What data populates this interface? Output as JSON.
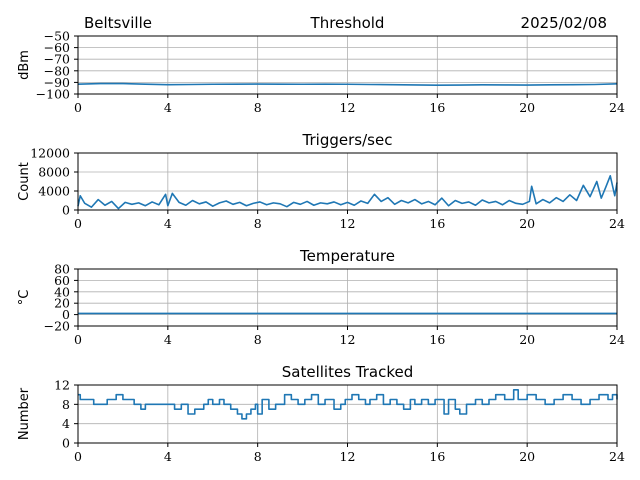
{
  "header": {
    "location": "Beltsville",
    "date": "2025/02/08"
  },
  "chart_data": [
    {
      "type": "line",
      "title": "Threshold",
      "xlabel": "",
      "ylabel": "dBm",
      "xlim": [
        0,
        24
      ],
      "ylim": [
        -100,
        -50
      ],
      "x_ticks": [
        0,
        4,
        8,
        12,
        16,
        20,
        24
      ],
      "y_ticks": [
        -100,
        -90,
        -80,
        -70,
        -60,
        -50
      ],
      "grid": true,
      "series": [
        {
          "x": [
            0,
            1,
            2,
            3,
            4,
            5,
            6,
            7,
            8,
            9,
            10,
            11,
            12,
            13,
            14,
            15,
            16,
            17,
            18,
            19,
            20,
            21,
            22,
            23,
            24
          ],
          "values": [
            -91.5,
            -91,
            -91,
            -91.5,
            -92,
            -91.8,
            -91.6,
            -91.5,
            -91.4,
            -91.5,
            -91.6,
            -91.5,
            -91.6,
            -91.8,
            -92,
            -92.2,
            -92.4,
            -92.3,
            -92.1,
            -92.2,
            -92.3,
            -92.1,
            -92,
            -91.8,
            -91.2
          ]
        }
      ]
    },
    {
      "type": "line",
      "title": "Triggers/sec",
      "xlabel": "",
      "ylabel": "Count",
      "xlim": [
        0,
        24
      ],
      "ylim": [
        0,
        12000
      ],
      "x_ticks": [
        0,
        4,
        8,
        12,
        16,
        20,
        24
      ],
      "y_ticks": [
        0,
        4000,
        8000,
        12000
      ],
      "grid": true,
      "series": [
        {
          "x": [
            0,
            0.1,
            0.3,
            0.6,
            0.9,
            1.2,
            1.5,
            1.8,
            2.1,
            2.4,
            2.7,
            3.0,
            3.3,
            3.6,
            3.9,
            4.0,
            4.2,
            4.5,
            4.8,
            5.1,
            5.4,
            5.7,
            6.0,
            6.3,
            6.6,
            6.9,
            7.2,
            7.5,
            7.8,
            8.1,
            8.4,
            8.7,
            9.0,
            9.3,
            9.6,
            9.9,
            10.2,
            10.5,
            10.8,
            11.1,
            11.4,
            11.7,
            12.0,
            12.3,
            12.6,
            12.9,
            13.2,
            13.5,
            13.8,
            14.1,
            14.4,
            14.7,
            15.0,
            15.3,
            15.6,
            15.9,
            16.2,
            16.5,
            16.8,
            17.1,
            17.4,
            17.7,
            18.0,
            18.3,
            18.6,
            18.9,
            19.2,
            19.5,
            19.8,
            20.1,
            20.2,
            20.4,
            20.7,
            21.0,
            21.3,
            21.6,
            21.9,
            22.2,
            22.5,
            22.8,
            23.1,
            23.3,
            23.5,
            23.7,
            23.9,
            24.0
          ],
          "values": [
            800,
            3000,
            1400,
            600,
            2200,
            1000,
            1800,
            300,
            1600,
            1200,
            1500,
            900,
            1700,
            1100,
            3300,
            900,
            3500,
            1600,
            1000,
            2000,
            1300,
            1700,
            800,
            1500,
            1900,
            1200,
            1600,
            900,
            1400,
            1700,
            1100,
            1500,
            1300,
            700,
            1600,
            1200,
            1800,
            1000,
            1500,
            1300,
            1700,
            1100,
            1600,
            1000,
            1900,
            1400,
            3300,
            1800,
            2600,
            1200,
            2000,
            1500,
            2200,
            1300,
            1800,
            1100,
            2500,
            900,
            2000,
            1400,
            1700,
            1000,
            2100,
            1500,
            1800,
            1100,
            2000,
            1400,
            1200,
            1800,
            5000,
            1300,
            2200,
            1500,
            2600,
            1800,
            3200,
            2000,
            5200,
            2800,
            6000,
            2500,
            4800,
            7200,
            3000,
            5800
          ]
        }
      ]
    },
    {
      "type": "line",
      "title": "Temperature",
      "xlabel": "",
      "ylabel": "°C",
      "xlim": [
        0,
        24
      ],
      "ylim": [
        -20,
        80
      ],
      "x_ticks": [
        0,
        4,
        8,
        12,
        16,
        20,
        24
      ],
      "y_ticks": [
        -20,
        0,
        20,
        40,
        60,
        80
      ],
      "grid": true,
      "series": [
        {
          "x": [
            0,
            24
          ],
          "values": [
            2,
            2
          ]
        }
      ]
    },
    {
      "type": "line",
      "title": "Satellites Tracked",
      "xlabel": "",
      "ylabel": "Number",
      "xlim": [
        0,
        24
      ],
      "ylim": [
        0,
        12
      ],
      "x_ticks": [
        0,
        4,
        8,
        12,
        16,
        20,
        24
      ],
      "y_ticks": [
        0,
        4,
        8,
        12
      ],
      "grid": true,
      "step": true,
      "series": [
        {
          "x": [
            0,
            0.1,
            0.7,
            1.3,
            1.7,
            2.0,
            2.5,
            2.8,
            3.0,
            4.3,
            4.6,
            4.9,
            5.2,
            5.6,
            5.8,
            6.0,
            6.3,
            6.5,
            6.8,
            7.1,
            7.3,
            7.5,
            7.7,
            7.9,
            8.0,
            8.2,
            8.5,
            8.8,
            9.2,
            9.5,
            9.8,
            10.1,
            10.4,
            10.7,
            11.0,
            11.4,
            11.7,
            11.9,
            12.2,
            12.5,
            12.8,
            13.0,
            13.3,
            13.6,
            13.9,
            14.2,
            14.5,
            14.8,
            15.0,
            15.3,
            15.6,
            15.9,
            16.3,
            16.5,
            16.8,
            17.0,
            17.3,
            17.7,
            18.0,
            18.3,
            18.6,
            19.0,
            19.4,
            19.6,
            20.0,
            20.4,
            20.8,
            21.2,
            21.6,
            22.0,
            22.4,
            22.8,
            23.2,
            23.6,
            23.8,
            24.0
          ],
          "values": [
            10,
            9,
            8,
            9,
            10,
            9,
            8,
            7,
            8,
            7,
            8,
            6,
            7,
            8,
            9,
            8,
            9,
            8,
            7,
            6,
            5,
            6,
            7,
            8,
            6,
            9,
            7,
            8,
            10,
            9,
            8,
            9,
            10,
            8,
            9,
            7,
            8,
            9,
            10,
            9,
            8,
            9,
            10,
            8,
            9,
            8,
            7,
            9,
            8,
            9,
            8,
            9,
            6,
            9,
            7,
            6,
            8,
            9,
            8,
            9,
            10,
            9,
            11,
            9,
            10,
            9,
            8,
            9,
            10,
            9,
            8,
            9,
            10,
            9,
            10,
            9
          ]
        }
      ]
    }
  ]
}
